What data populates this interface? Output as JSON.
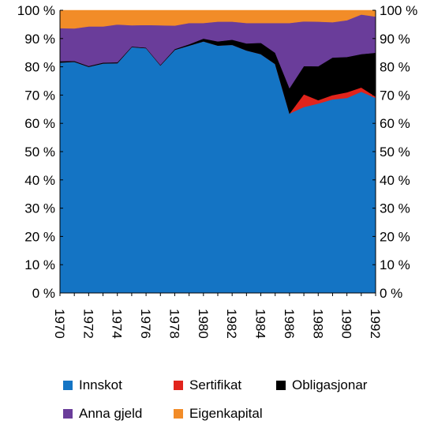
{
  "chart_data": {
    "type": "area",
    "stacked": true,
    "title": "",
    "xlabel": "",
    "ylabel": "",
    "ylim": [
      0,
      100
    ],
    "y_ticks": [
      "0 %",
      "10 %",
      "20 %",
      "30 %",
      "40 %",
      "50 %",
      "60 %",
      "70 %",
      "80 %",
      "90 %",
      "100 %"
    ],
    "x": [
      1970,
      1971,
      1972,
      1973,
      1974,
      1975,
      1976,
      1977,
      1978,
      1979,
      1980,
      1981,
      1982,
      1983,
      1984,
      1985,
      1986,
      1987,
      1988,
      1989,
      1990,
      1991,
      1992
    ],
    "x_tick_labels": [
      "1970",
      "1972",
      "1974",
      "1976",
      "1978",
      "1980",
      "1982",
      "1984",
      "1986",
      "1988",
      "1990",
      "1992"
    ],
    "series": [
      {
        "name": "Innskot",
        "color": "#1474c4",
        "values": [
          81.5,
          81.8,
          80.0,
          81.2,
          81.3,
          87.0,
          86.6,
          80.5,
          86.0,
          87.5,
          89.0,
          87.5,
          87.8,
          85.8,
          84.5,
          81.0,
          63.5,
          65.8,
          67.0,
          68.5,
          69.0,
          71.2,
          69.0
        ]
      },
      {
        "name": "Sertifikat",
        "color": "#e1241c",
        "values": [
          0,
          0,
          0,
          0,
          0,
          0,
          0,
          0,
          0,
          0,
          0,
          0,
          0,
          0,
          0,
          0,
          0,
          4.5,
          1.2,
          1.5,
          2.0,
          1.5,
          0.5
        ]
      },
      {
        "name": "Obligasjonar",
        "color": "#000000",
        "values": [
          0.5,
          0.3,
          0.3,
          0.3,
          0.3,
          0.2,
          0.2,
          0.2,
          0.3,
          0.5,
          1.0,
          1.5,
          1.8,
          2.5,
          4.0,
          4.0,
          9.0,
          10.0,
          12.0,
          13.3,
          12.5,
          11.8,
          15.5
        ]
      },
      {
        "name": "Anna gjeld",
        "color": "#6a3d9a",
        "values": [
          11.7,
          11.5,
          14.0,
          12.8,
          13.4,
          7.5,
          8.0,
          14.0,
          8.3,
          7.5,
          5.5,
          7.0,
          6.4,
          7.2,
          7.0,
          10.5,
          23.0,
          15.8,
          15.8,
          12.5,
          13.0,
          14.0,
          12.8
        ]
      },
      {
        "name": "Eigenkapital",
        "color": "#f28c28",
        "values": [
          6.3,
          6.4,
          5.7,
          5.7,
          5.0,
          5.3,
          5.2,
          5.3,
          5.4,
          4.5,
          4.5,
          4.0,
          4.0,
          4.5,
          4.5,
          4.5,
          4.5,
          3.9,
          4.0,
          4.2,
          3.5,
          1.5,
          2.2
        ]
      }
    ],
    "legend": {
      "position": "bottom",
      "rows": [
        [
          "Innskot",
          "Sertifikat",
          "Obligasjonar"
        ],
        [
          "Anna gjeld",
          "Eigenkapital"
        ]
      ]
    },
    "grid": false
  }
}
